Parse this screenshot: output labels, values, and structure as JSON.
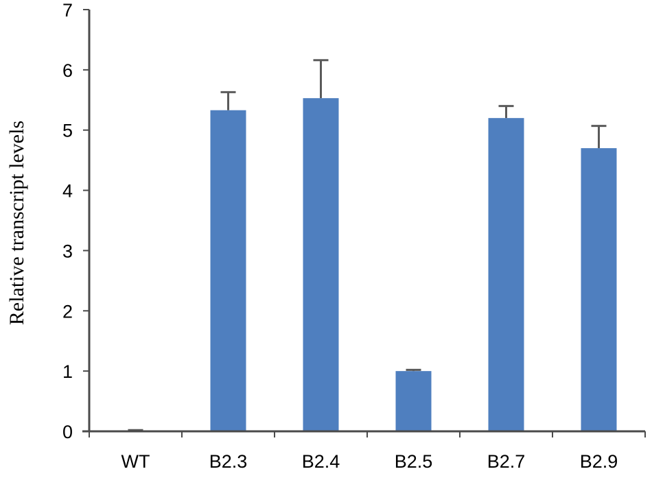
{
  "chart_data": {
    "type": "bar",
    "categories": [
      "WT",
      "B2.3",
      "B2.4",
      "B2.5",
      "B2.7",
      "B2.9"
    ],
    "values": [
      0.01,
      5.33,
      5.53,
      1.0,
      5.2,
      4.7
    ],
    "errors": [
      0.01,
      0.3,
      0.63,
      0.02,
      0.2,
      0.37
    ],
    "xlabel": "",
    "ylabel": "Relative transcript levels",
    "ylim": [
      0,
      7
    ],
    "yticks": [
      "0",
      "1",
      "2",
      "3",
      "4",
      "5",
      "6",
      "7"
    ],
    "bar_color": "#4f7fbf",
    "error_color": "#5a5a5a",
    "grid": false,
    "legend": "none"
  }
}
